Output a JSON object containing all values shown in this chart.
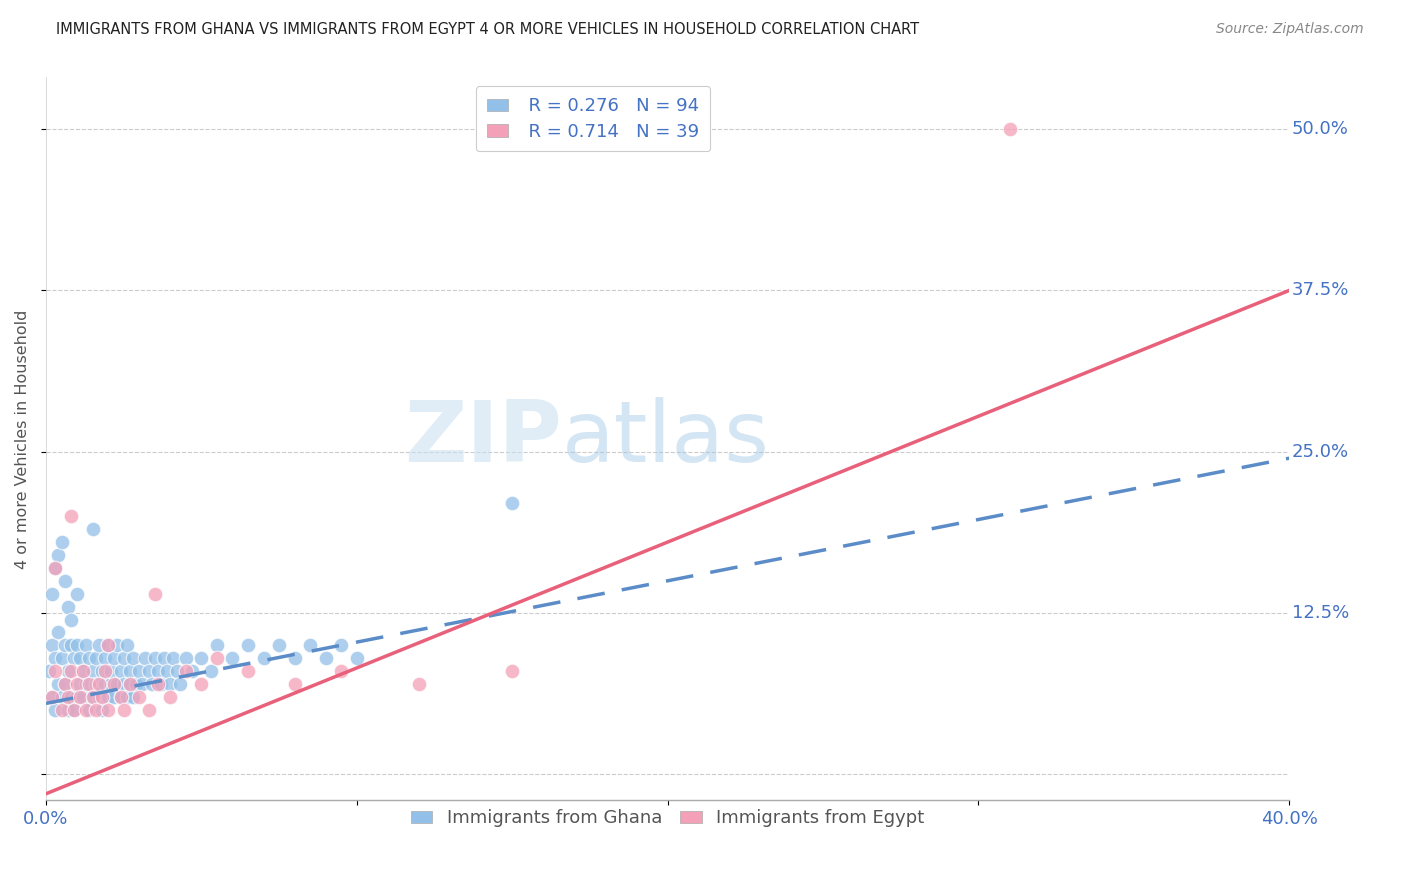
{
  "title": "IMMIGRANTS FROM GHANA VS IMMIGRANTS FROM EGYPT 4 OR MORE VEHICLES IN HOUSEHOLD CORRELATION CHART",
  "source": "Source: ZipAtlas.com",
  "ylabel": "4 or more Vehicles in Household",
  "xlim": [
    0.0,
    0.4
  ],
  "ylim": [
    -0.02,
    0.54
  ],
  "xticks": [
    0.0,
    0.1,
    0.2,
    0.3,
    0.4
  ],
  "xtick_labels": [
    "0.0%",
    "",
    "",
    "",
    "40.0%"
  ],
  "yticks": [
    0.0,
    0.125,
    0.25,
    0.375,
    0.5
  ],
  "ytick_labels": [
    "",
    "12.5%",
    "25.0%",
    "37.5%",
    "50.0%"
  ],
  "ghana_color": "#92C0E8",
  "egypt_color": "#F4A0B8",
  "ghana_line_color": "#5B8CC8",
  "egypt_line_color": "#E8607A",
  "ghana_R": 0.276,
  "ghana_N": 94,
  "egypt_R": 0.714,
  "egypt_N": 39,
  "watermark_zip": "ZIP",
  "watermark_atlas": "atlas",
  "ghana_line_x0": 0.0,
  "ghana_line_y0": 0.055,
  "ghana_line_x1": 0.4,
  "ghana_line_y1": 0.245,
  "egypt_line_x0": 0.0,
  "egypt_line_y0": -0.015,
  "egypt_line_x1": 0.4,
  "egypt_line_y1": 0.375,
  "ghana_scatter_x": [
    0.001,
    0.002,
    0.002,
    0.003,
    0.003,
    0.004,
    0.004,
    0.005,
    0.005,
    0.006,
    0.006,
    0.007,
    0.007,
    0.008,
    0.008,
    0.009,
    0.009,
    0.01,
    0.01,
    0.011,
    0.011,
    0.012,
    0.012,
    0.013,
    0.013,
    0.014,
    0.014,
    0.015,
    0.015,
    0.016,
    0.016,
    0.017,
    0.017,
    0.018,
    0.018,
    0.019,
    0.019,
    0.02,
    0.02,
    0.021,
    0.021,
    0.022,
    0.022,
    0.023,
    0.023,
    0.024,
    0.024,
    0.025,
    0.025,
    0.026,
    0.026,
    0.027,
    0.027,
    0.028,
    0.028,
    0.029,
    0.03,
    0.031,
    0.032,
    0.033,
    0.034,
    0.035,
    0.036,
    0.037,
    0.038,
    0.039,
    0.04,
    0.041,
    0.042,
    0.043,
    0.045,
    0.047,
    0.05,
    0.053,
    0.055,
    0.06,
    0.065,
    0.07,
    0.075,
    0.08,
    0.085,
    0.09,
    0.095,
    0.1,
    0.15,
    0.002,
    0.003,
    0.004,
    0.005,
    0.006,
    0.007,
    0.008,
    0.01,
    0.015
  ],
  "ghana_scatter_y": [
    0.08,
    0.06,
    0.1,
    0.05,
    0.09,
    0.07,
    0.11,
    0.06,
    0.09,
    0.07,
    0.1,
    0.05,
    0.08,
    0.06,
    0.1,
    0.05,
    0.09,
    0.06,
    0.1,
    0.07,
    0.09,
    0.06,
    0.08,
    0.07,
    0.1,
    0.05,
    0.09,
    0.06,
    0.08,
    0.07,
    0.09,
    0.06,
    0.1,
    0.05,
    0.08,
    0.07,
    0.09,
    0.06,
    0.1,
    0.07,
    0.08,
    0.06,
    0.09,
    0.07,
    0.1,
    0.06,
    0.08,
    0.07,
    0.09,
    0.06,
    0.1,
    0.07,
    0.08,
    0.06,
    0.09,
    0.07,
    0.08,
    0.07,
    0.09,
    0.08,
    0.07,
    0.09,
    0.08,
    0.07,
    0.09,
    0.08,
    0.07,
    0.09,
    0.08,
    0.07,
    0.09,
    0.08,
    0.09,
    0.08,
    0.1,
    0.09,
    0.1,
    0.09,
    0.1,
    0.09,
    0.1,
    0.09,
    0.1,
    0.09,
    0.21,
    0.14,
    0.16,
    0.17,
    0.18,
    0.15,
    0.13,
    0.12,
    0.14,
    0.19
  ],
  "egypt_scatter_x": [
    0.002,
    0.003,
    0.005,
    0.006,
    0.007,
    0.008,
    0.009,
    0.01,
    0.011,
    0.012,
    0.013,
    0.014,
    0.015,
    0.016,
    0.017,
    0.018,
    0.019,
    0.02,
    0.022,
    0.024,
    0.025,
    0.027,
    0.03,
    0.033,
    0.036,
    0.04,
    0.045,
    0.05,
    0.055,
    0.065,
    0.08,
    0.095,
    0.12,
    0.15,
    0.31,
    0.003,
    0.008,
    0.02,
    0.035
  ],
  "egypt_scatter_y": [
    0.06,
    0.08,
    0.05,
    0.07,
    0.06,
    0.08,
    0.05,
    0.07,
    0.06,
    0.08,
    0.05,
    0.07,
    0.06,
    0.05,
    0.07,
    0.06,
    0.08,
    0.05,
    0.07,
    0.06,
    0.05,
    0.07,
    0.06,
    0.05,
    0.07,
    0.06,
    0.08,
    0.07,
    0.09,
    0.08,
    0.07,
    0.08,
    0.07,
    0.08,
    0.5,
    0.16,
    0.2,
    0.1,
    0.14
  ]
}
